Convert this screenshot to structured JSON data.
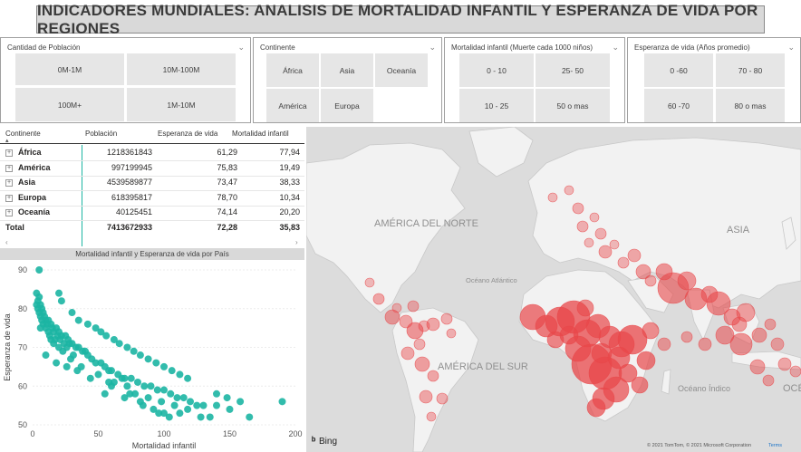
{
  "title": "INDICADORES MUNDIALES: ANALISIS DE MORTALIDAD INFANTIL Y ESPERANZA DE VIDA POR REGIONES",
  "slicers": {
    "poblacion": {
      "label": "Cantidad de Población",
      "options": [
        "0M-1M",
        "10M-100M",
        "100M+",
        "1M-10M"
      ]
    },
    "continente": {
      "label": "Continente",
      "options": [
        "África",
        "Asia",
        "Oceanía",
        "América",
        "Europa"
      ]
    },
    "mortalidad": {
      "label": "Mortalidad infantil (Muerte cada 1000 niños)",
      "options": [
        "0 - 10",
        "25- 50",
        "10 - 25",
        "50 o mas"
      ]
    },
    "esperanza": {
      "label": "Esperanza de vida (Años promedio)",
      "options": [
        "0 -60",
        "70 - 80",
        "60 -70",
        "80 o mas"
      ]
    }
  },
  "table": {
    "headers": [
      "Continente",
      "Población",
      "Esperanza de vida",
      "Mortalidad infantil"
    ],
    "rows": [
      {
        "continente": "África",
        "poblacion": "1218361843",
        "esperanza": "61,29",
        "mortalidad": "77,94"
      },
      {
        "continente": "América",
        "poblacion": "997199945",
        "esperanza": "75,83",
        "mortalidad": "19,49"
      },
      {
        "continente": "Asia",
        "poblacion": "4539589877",
        "esperanza": "73,47",
        "mortalidad": "38,33"
      },
      {
        "continente": "Europa",
        "poblacion": "618395817",
        "esperanza": "78,70",
        "mortalidad": "10,34"
      },
      {
        "continente": "Oceanía",
        "poblacion": "40125451",
        "esperanza": "74,14",
        "mortalidad": "20,20"
      }
    ],
    "total": {
      "label": "Total",
      "poblacion": "7413672933",
      "esperanza": "72,28",
      "mortalidad": "35,83"
    }
  },
  "colors": {
    "scatter": "#1cb5a3",
    "bubble": "#e8474a",
    "map_bg": "#dcdcdc",
    "land": "#f2f2f2"
  },
  "chart_data": {
    "type": "scatter",
    "title": "Mortalidad infantil y Esperanza de vida por País",
    "xlabel": "Mortalidad infantil",
    "ylabel": "Esperanza de vida",
    "xlim": [
      0,
      200
    ],
    "ylim": [
      50,
      90
    ],
    "xticks": [
      0,
      50,
      100,
      150,
      200
    ],
    "yticks": [
      50,
      60,
      70,
      80,
      90
    ],
    "points": [
      [
        5,
        90
      ],
      [
        3,
        84
      ],
      [
        4,
        82
      ],
      [
        5,
        83
      ],
      [
        3,
        81
      ],
      [
        6,
        81
      ],
      [
        4,
        80
      ],
      [
        7,
        80
      ],
      [
        5,
        79
      ],
      [
        8,
        79
      ],
      [
        6,
        78
      ],
      [
        9,
        78
      ],
      [
        10,
        77
      ],
      [
        7,
        77
      ],
      [
        12,
        77
      ],
      [
        8,
        76
      ],
      [
        11,
        76
      ],
      [
        14,
        76
      ],
      [
        6,
        75
      ],
      [
        10,
        75
      ],
      [
        15,
        75
      ],
      [
        18,
        75
      ],
      [
        12,
        74
      ],
      [
        16,
        74
      ],
      [
        20,
        74
      ],
      [
        13,
        73
      ],
      [
        19,
        73
      ],
      [
        22,
        73
      ],
      [
        25,
        73
      ],
      [
        14,
        72
      ],
      [
        17,
        72
      ],
      [
        21,
        72
      ],
      [
        27,
        72
      ],
      [
        16,
        71
      ],
      [
        24,
        71
      ],
      [
        28,
        71
      ],
      [
        30,
        71
      ],
      [
        20,
        70
      ],
      [
        26,
        70
      ],
      [
        33,
        70
      ],
      [
        35,
        70
      ],
      [
        23,
        69
      ],
      [
        38,
        69
      ],
      [
        31,
        68
      ],
      [
        42,
        68
      ],
      [
        40,
        69
      ],
      [
        45,
        67
      ],
      [
        29,
        67
      ],
      [
        48,
        66
      ],
      [
        52,
        66
      ],
      [
        55,
        65
      ],
      [
        37,
        65
      ],
      [
        60,
        64
      ],
      [
        58,
        64
      ],
      [
        65,
        63
      ],
      [
        50,
        63
      ],
      [
        68,
        62
      ],
      [
        70,
        62
      ],
      [
        75,
        62
      ],
      [
        80,
        61
      ],
      [
        62,
        61
      ],
      [
        85,
        60
      ],
      [
        90,
        60
      ],
      [
        72,
        60
      ],
      [
        95,
        59
      ],
      [
        100,
        59
      ],
      [
        78,
        58
      ],
      [
        105,
        58
      ],
      [
        110,
        57
      ],
      [
        88,
        57
      ],
      [
        115,
        57
      ],
      [
        120,
        56
      ],
      [
        98,
        56
      ],
      [
        125,
        55
      ],
      [
        130,
        55
      ],
      [
        108,
        55
      ],
      [
        140,
        55
      ],
      [
        150,
        54
      ],
      [
        118,
        54
      ],
      [
        165,
        52
      ],
      [
        190,
        56
      ],
      [
        60,
        60
      ],
      [
        55,
        58
      ],
      [
        70,
        57
      ],
      [
        82,
        56
      ],
      [
        92,
        54
      ],
      [
        100,
        53
      ],
      [
        112,
        53
      ],
      [
        128,
        52
      ],
      [
        135,
        52
      ],
      [
        20,
        84
      ],
      [
        22,
        82
      ],
      [
        30,
        79
      ],
      [
        35,
        77
      ],
      [
        42,
        76
      ],
      [
        48,
        75
      ],
      [
        52,
        74
      ],
      [
        56,
        73
      ],
      [
        62,
        72
      ],
      [
        66,
        71
      ],
      [
        72,
        70
      ],
      [
        77,
        69
      ],
      [
        82,
        68
      ],
      [
        88,
        67
      ],
      [
        94,
        66
      ],
      [
        100,
        65
      ],
      [
        106,
        64
      ],
      [
        112,
        63
      ],
      [
        118,
        62
      ],
      [
        10,
        68
      ],
      [
        18,
        66
      ],
      [
        26,
        65
      ],
      [
        34,
        64
      ],
      [
        44,
        62
      ],
      [
        58,
        61
      ],
      [
        74,
        58
      ],
      [
        84,
        55
      ],
      [
        96,
        53
      ],
      [
        104,
        52
      ],
      [
        140,
        58
      ],
      [
        148,
        57
      ],
      [
        158,
        56
      ]
    ]
  },
  "map": {
    "labels": [
      "AMÉRICA DEL NORTE",
      "ASIA",
      "Océano Atlántico",
      "AMÉRICA DEL SUR",
      "Océano Índico",
      "OCÉ"
    ],
    "logo": "Bing",
    "copyright": "© 2021 TomTom, © 2021 Microsoft Corporation",
    "terms": "Terms"
  }
}
